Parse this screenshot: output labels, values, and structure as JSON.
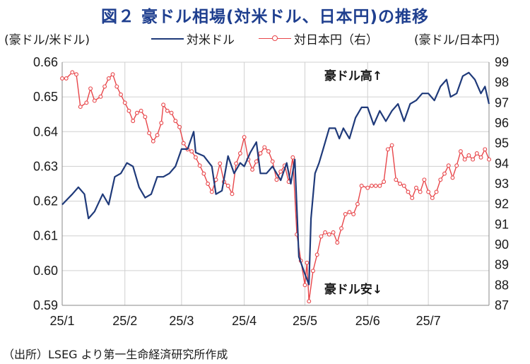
{
  "title": "図２ 豪ドル相場(対米ドル、日本円)の推移",
  "left_unit": "(豪ドル/米ドル)",
  "right_unit": "(豪ドル/日本円)",
  "source": "（出所）LSEG より第一生命経済研究所作成",
  "colors": {
    "usd": "#1f3a7a",
    "jpy": "#e8464a",
    "title": "#1f3f8f"
  },
  "chart_data": {
    "type": "line",
    "x_labels": [
      "25/1",
      "25/2",
      "25/3",
      "25/4",
      "25/5",
      "25/6",
      "25/7"
    ],
    "xlim": [
      "2025-01-01",
      "2025-07-31"
    ],
    "y_left": {
      "min": 0.59,
      "max": 0.66,
      "ticks": [
        "0.66",
        "0.65",
        "0.64",
        "0.63",
        "0.62",
        "0.61",
        "0.60",
        "0.59"
      ]
    },
    "y_right": {
      "min": 87,
      "max": 99,
      "ticks": [
        "99",
        "98",
        "97",
        "96",
        "95",
        "94",
        "93",
        "92",
        "91",
        "90",
        "89",
        "88",
        "87"
      ]
    },
    "annotations": {
      "top": "豪ドル高↑",
      "bottom": "豪ドル安↓"
    },
    "series": [
      {
        "name": "対米ドル",
        "axis": "left",
        "marker": false,
        "points": [
          [
            "2025-01-01",
            0.619
          ],
          [
            "2025-01-06",
            0.622
          ],
          [
            "2025-01-09",
            0.624
          ],
          [
            "2025-01-12",
            0.622
          ],
          [
            "2025-01-14",
            0.615
          ],
          [
            "2025-01-17",
            0.617
          ],
          [
            "2025-01-21",
            0.622
          ],
          [
            "2025-01-24",
            0.619
          ],
          [
            "2025-01-27",
            0.627
          ],
          [
            "2025-01-30",
            0.628
          ],
          [
            "2025-02-02",
            0.631
          ],
          [
            "2025-02-05",
            0.63
          ],
          [
            "2025-02-08",
            0.624
          ],
          [
            "2025-02-11",
            0.621
          ],
          [
            "2025-02-14",
            0.622
          ],
          [
            "2025-02-17",
            0.627
          ],
          [
            "2025-02-20",
            0.627
          ],
          [
            "2025-02-23",
            0.628
          ],
          [
            "2025-02-26",
            0.63
          ],
          [
            "2025-03-01",
            0.635
          ],
          [
            "2025-03-04",
            0.635
          ],
          [
            "2025-03-07",
            0.64
          ],
          [
            "2025-03-08",
            0.634
          ],
          [
            "2025-03-12",
            0.633
          ],
          [
            "2025-03-16",
            0.63
          ],
          [
            "2025-03-18",
            0.622
          ],
          [
            "2025-03-21",
            0.623
          ],
          [
            "2025-03-24",
            0.633
          ],
          [
            "2025-03-27",
            0.628
          ],
          [
            "2025-03-30",
            0.631
          ],
          [
            "2025-04-01",
            0.63
          ],
          [
            "2025-04-04",
            0.634
          ],
          [
            "2025-04-07",
            0.637
          ],
          [
            "2025-04-09",
            0.628
          ],
          [
            "2025-04-12",
            0.628
          ],
          [
            "2025-04-15",
            0.63
          ],
          [
            "2025-04-19",
            0.626
          ],
          [
            "2025-04-22",
            0.631
          ],
          [
            "2025-04-24",
            0.625
          ],
          [
            "2025-04-26",
            0.632
          ],
          [
            "2025-04-28",
            0.604
          ],
          [
            "2025-05-01",
            0.599
          ],
          [
            "2025-05-03",
            0.596
          ],
          [
            "2025-05-04",
            0.615
          ],
          [
            "2025-05-06",
            0.628
          ],
          [
            "2025-05-08",
            0.631
          ],
          [
            "2025-05-10",
            0.635
          ],
          [
            "2025-05-13",
            0.641
          ],
          [
            "2025-05-16",
            0.641
          ],
          [
            "2025-05-18",
            0.638
          ],
          [
            "2025-05-20",
            0.641
          ],
          [
            "2025-05-23",
            0.638
          ],
          [
            "2025-05-26",
            0.644
          ],
          [
            "2025-05-29",
            0.647
          ],
          [
            "2025-06-01",
            0.647
          ],
          [
            "2025-06-04",
            0.642
          ],
          [
            "2025-06-07",
            0.646
          ],
          [
            "2025-06-10",
            0.643
          ],
          [
            "2025-06-13",
            0.646
          ],
          [
            "2025-06-16",
            0.648
          ],
          [
            "2025-06-19",
            0.643
          ],
          [
            "2025-06-22",
            0.648
          ],
          [
            "2025-06-25",
            0.649
          ],
          [
            "2025-06-28",
            0.651
          ],
          [
            "2025-07-01",
            0.651
          ],
          [
            "2025-07-04",
            0.649
          ],
          [
            "2025-07-07",
            0.653
          ],
          [
            "2025-07-10",
            0.655
          ],
          [
            "2025-07-12",
            0.65
          ],
          [
            "2025-07-15",
            0.651
          ],
          [
            "2025-07-18",
            0.656
          ],
          [
            "2025-07-21",
            0.657
          ],
          [
            "2025-07-24",
            0.655
          ],
          [
            "2025-07-27",
            0.651
          ],
          [
            "2025-07-29",
            0.653
          ],
          [
            "2025-07-31",
            0.648
          ]
        ]
      },
      {
        "name": "対日本円（右）",
        "axis": "right",
        "marker": true,
        "points": [
          [
            "2025-01-01",
            98.2
          ],
          [
            "2025-01-03",
            98.2
          ],
          [
            "2025-01-06",
            98.5
          ],
          [
            "2025-01-08",
            98.4
          ],
          [
            "2025-01-10",
            96.8
          ],
          [
            "2025-01-13",
            97.0
          ],
          [
            "2025-01-15",
            97.7
          ],
          [
            "2025-01-17",
            97.1
          ],
          [
            "2025-01-20",
            97.3
          ],
          [
            "2025-01-22",
            97.8
          ],
          [
            "2025-01-24",
            98.2
          ],
          [
            "2025-01-26",
            98.4
          ],
          [
            "2025-01-28",
            97.8
          ],
          [
            "2025-01-30",
            97.4
          ],
          [
            "2025-02-01",
            97.0
          ],
          [
            "2025-02-03",
            96.6
          ],
          [
            "2025-02-05",
            96.1
          ],
          [
            "2025-02-07",
            96.5
          ],
          [
            "2025-02-09",
            96.6
          ],
          [
            "2025-02-11",
            96.3
          ],
          [
            "2025-02-13",
            95.5
          ],
          [
            "2025-02-15",
            95.1
          ],
          [
            "2025-02-17",
            95.4
          ],
          [
            "2025-02-19",
            96.0
          ],
          [
            "2025-02-20",
            96.9
          ],
          [
            "2025-02-22",
            96.6
          ],
          [
            "2025-02-24",
            96.5
          ],
          [
            "2025-02-26",
            96.1
          ],
          [
            "2025-02-28",
            95.8
          ],
          [
            "2025-03-02",
            95.0
          ],
          [
            "2025-03-04",
            94.7
          ],
          [
            "2025-03-06",
            94.6
          ],
          [
            "2025-03-08",
            94.3
          ],
          [
            "2025-03-10",
            93.9
          ],
          [
            "2025-03-12",
            93.5
          ],
          [
            "2025-03-14",
            93.0
          ],
          [
            "2025-03-16",
            92.6
          ],
          [
            "2025-03-18",
            93.2
          ],
          [
            "2025-03-20",
            94.0
          ],
          [
            "2025-03-22",
            93.1
          ],
          [
            "2025-03-24",
            92.9
          ],
          [
            "2025-03-26",
            92.5
          ],
          [
            "2025-03-28",
            94.0
          ],
          [
            "2025-03-30",
            94.5
          ],
          [
            "2025-04-01",
            95.3
          ],
          [
            "2025-04-03",
            94.2
          ],
          [
            "2025-04-05",
            93.7
          ],
          [
            "2025-04-07",
            94.1
          ],
          [
            "2025-04-09",
            94.5
          ],
          [
            "2025-04-11",
            94.8
          ],
          [
            "2025-04-13",
            94.6
          ],
          [
            "2025-04-15",
            94.1
          ],
          [
            "2025-04-17",
            93.2
          ],
          [
            "2025-04-19",
            93.6
          ],
          [
            "2025-04-21",
            93.9
          ],
          [
            "2025-04-23",
            93.1
          ],
          [
            "2025-04-25",
            94.3
          ],
          [
            "2025-04-27",
            90.5
          ],
          [
            "2025-04-29",
            89.2
          ],
          [
            "2025-05-01",
            88.0
          ],
          [
            "2025-05-02",
            89.1
          ],
          [
            "2025-05-03",
            87.2
          ],
          [
            "2025-05-05",
            88.7
          ],
          [
            "2025-05-07",
            89.5
          ],
          [
            "2025-05-09",
            90.4
          ],
          [
            "2025-05-11",
            90.6
          ],
          [
            "2025-05-13",
            90.5
          ],
          [
            "2025-05-15",
            90.6
          ],
          [
            "2025-05-17",
            90.1
          ],
          [
            "2025-05-19",
            90.8
          ],
          [
            "2025-05-21",
            91.5
          ],
          [
            "2025-05-23",
            91.6
          ],
          [
            "2025-05-25",
            91.5
          ],
          [
            "2025-05-27",
            92.0
          ],
          [
            "2025-05-29",
            92.9
          ],
          [
            "2025-06-01",
            92.8
          ],
          [
            "2025-06-03",
            92.9
          ],
          [
            "2025-06-05",
            92.9
          ],
          [
            "2025-06-07",
            92.9
          ],
          [
            "2025-06-09",
            93.1
          ],
          [
            "2025-06-11",
            94.7
          ],
          [
            "2025-06-13",
            94.9
          ],
          [
            "2025-06-15",
            93.2
          ],
          [
            "2025-06-17",
            93.0
          ],
          [
            "2025-06-19",
            92.9
          ],
          [
            "2025-06-21",
            92.6
          ],
          [
            "2025-06-23",
            92.3
          ],
          [
            "2025-06-25",
            92.8
          ],
          [
            "2025-06-27",
            92.6
          ],
          [
            "2025-06-29",
            93.2
          ],
          [
            "2025-07-01",
            92.6
          ],
          [
            "2025-07-03",
            92.3
          ],
          [
            "2025-07-05",
            92.6
          ],
          [
            "2025-07-07",
            93.2
          ],
          [
            "2025-07-09",
            93.5
          ],
          [
            "2025-07-11",
            93.9
          ],
          [
            "2025-07-13",
            93.3
          ],
          [
            "2025-07-15",
            93.9
          ],
          [
            "2025-07-17",
            94.6
          ],
          [
            "2025-07-19",
            94.2
          ],
          [
            "2025-07-21",
            94.4
          ],
          [
            "2025-07-23",
            94.2
          ],
          [
            "2025-07-25",
            94.5
          ],
          [
            "2025-07-27",
            94.3
          ],
          [
            "2025-07-29",
            94.7
          ],
          [
            "2025-07-31",
            94.2
          ]
        ]
      }
    ]
  }
}
